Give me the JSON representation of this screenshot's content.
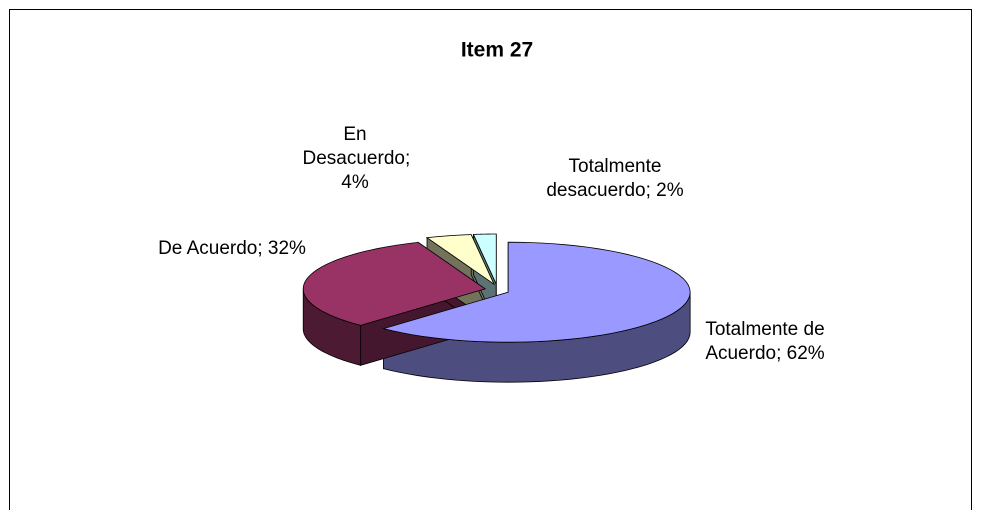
{
  "chart_data": {
    "type": "pie",
    "title": "Item 27",
    "values": [
      62,
      32,
      4,
      2
    ],
    "value_labels": [
      "Totalmente de Acuerdo; 62%",
      "De Acuerdo; 32%",
      "En Desacuerdo; 4%",
      "Totalmente desacuerdo; 2%"
    ],
    "colors": [
      "#9999ff",
      "#993366",
      "#ffffcc",
      "#ccffff"
    ],
    "style": "3d"
  }
}
